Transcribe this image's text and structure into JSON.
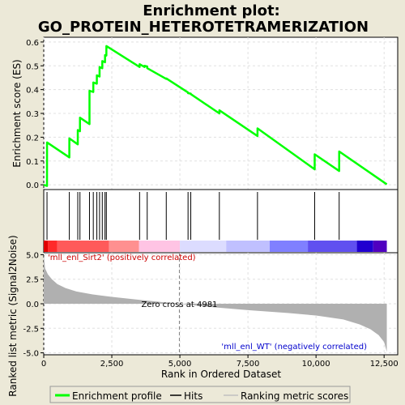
{
  "chart_data": {
    "type": "line",
    "title": "Enrichment plot:\nGO_PROTEIN_HETEROTETRAMERIZATION",
    "title_lines": [
      "Enrichment plot:",
      "GO_PROTEIN_HETEROTETRAMERIZATION"
    ],
    "top_panel": {
      "ylabel": "Enrichment score (ES)",
      "ylim": [
        -0.02,
        0.62
      ],
      "yticks": [
        0.0,
        0.1,
        0.2,
        0.3,
        0.4,
        0.5,
        0.6
      ],
      "ytick_labels": [
        "0.0",
        "0.1",
        "0.2",
        "0.3",
        "0.4",
        "0.5",
        "0.6"
      ],
      "grid": true,
      "series": [
        {
          "name": "Enrichment profile",
          "color": "#00ff00",
          "x": [
            0,
            120,
            121,
            940,
            941,
            1250,
            1251,
            1330,
            1331,
            1680,
            1681,
            1820,
            1821,
            1950,
            1951,
            2050,
            2051,
            2150,
            2151,
            2250,
            2251,
            2300,
            2301,
            3520,
            3521,
            3700,
            3701,
            3800,
            3801,
            4500,
            4501,
            5300,
            5301,
            5400,
            5401,
            6450,
            6451,
            7850,
            7851,
            9950,
            9951,
            10850,
            10851,
            12600
          ],
          "y": [
            0.0,
            -0.005,
            0.178,
            0.115,
            0.195,
            0.17,
            0.23,
            0.225,
            0.282,
            0.255,
            0.395,
            0.39,
            0.43,
            0.425,
            0.46,
            0.455,
            0.495,
            0.49,
            0.52,
            0.515,
            0.545,
            0.543,
            0.583,
            0.495,
            0.507,
            0.495,
            0.5,
            0.497,
            0.49,
            0.445,
            0.447,
            0.388,
            0.385,
            0.383,
            0.381,
            0.3,
            0.313,
            0.205,
            0.237,
            0.065,
            0.128,
            0.058,
            0.14,
            0.002
          ]
        }
      ]
    },
    "hits_panel": {
      "hit_positions": [
        120,
        940,
        1250,
        1330,
        1680,
        1820,
        1950,
        2050,
        2150,
        2250,
        2300,
        3520,
        3800,
        4500,
        5300,
        5400,
        6450,
        7850,
        9950,
        10850
      ],
      "color_bar_segments": [
        {
          "x0": 0,
          "x1": 150,
          "color": "#e00000"
        },
        {
          "x0": 150,
          "x1": 500,
          "color": "#ff2a2a"
        },
        {
          "x0": 500,
          "x1": 2400,
          "color": "#ff5a5a"
        },
        {
          "x0": 2400,
          "x1": 3500,
          "color": "#ff9090"
        },
        {
          "x0": 3500,
          "x1": 5000,
          "color": "#ffc4e4"
        },
        {
          "x0": 5000,
          "x1": 6700,
          "color": "#dcdcff"
        },
        {
          "x0": 6700,
          "x1": 8300,
          "color": "#c0c0ff"
        },
        {
          "x0": 8300,
          "x1": 9700,
          "color": "#8080ff"
        },
        {
          "x0": 9700,
          "x1": 11500,
          "color": "#6050f0"
        },
        {
          "x0": 11500,
          "x1": 12100,
          "color": "#2000d0"
        },
        {
          "x0": 12100,
          "x1": 12600,
          "color": "#5000c0"
        }
      ]
    },
    "bottom_panel": {
      "ylabel": "Ranked list metric (Signal2Noise)",
      "ylim": [
        -5.2,
        5.2
      ],
      "yticks": [
        -5.0,
        -2.5,
        0.0,
        2.5,
        5.0
      ],
      "ytick_labels": [
        "-5.0",
        "-2.5",
        "0.0",
        "2.5",
        "5.0"
      ],
      "metric_curve": {
        "x": [
          0,
          50,
          150,
          300,
          500,
          800,
          1200,
          1800,
          2500,
          3500,
          4500,
          4981,
          6000,
          7500,
          9000,
          10000,
          11000,
          11600,
          12000,
          12300,
          12500,
          12600
        ],
        "y": [
          5.0,
          3.6,
          3.0,
          2.5,
          2.0,
          1.6,
          1.25,
          0.95,
          0.7,
          0.4,
          0.12,
          0.0,
          -0.3,
          -0.65,
          -0.95,
          -1.2,
          -1.6,
          -2.1,
          -2.6,
          -3.2,
          -3.9,
          -4.9
        ]
      },
      "zero_cross": 4981,
      "zero_cross_label": "Zero cross at 4981",
      "positive_label": "'mll_enl_Sirt2' (positively correlated)",
      "negative_label": "'mll_enl_WT' (negatively correlated)",
      "positive_color": "#cc0000",
      "negative_color": "#0000cc"
    },
    "xlabel": "Rank in Ordered Dataset",
    "xlim": [
      0,
      13000
    ],
    "xticks": [
      0,
      2500,
      5000,
      7500,
      10000,
      12500
    ],
    "xtick_labels": [
      "0",
      "2,500",
      "5,000",
      "7,500",
      "10,000",
      "12,500"
    ],
    "legend": {
      "placement": "bottom",
      "entries": [
        {
          "label": "Enrichment profile",
          "color": "#00ff00",
          "style": "thick-line"
        },
        {
          "label": "Hits",
          "color": "#000000",
          "style": "line"
        },
        {
          "label": "Ranking metric scores",
          "color": "#c0c0c0",
          "style": "line"
        }
      ]
    }
  }
}
